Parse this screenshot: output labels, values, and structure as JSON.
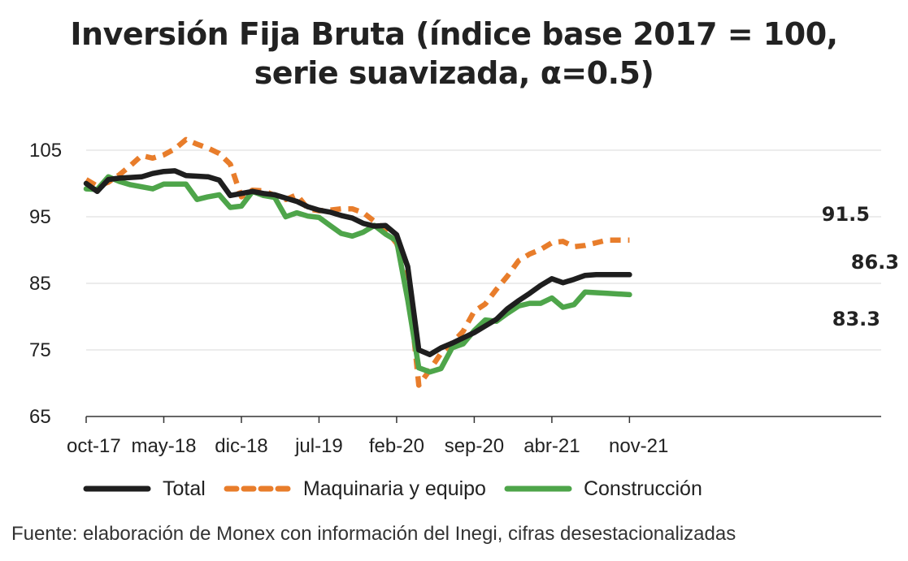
{
  "chart_data": {
    "type": "line",
    "title_line1": "Inversión Fija Bruta (índice base 2017 = 100,",
    "title_line2": "serie suavizada, α=0.5)",
    "source": "Fuente: elaboración de Monex con información del Inegi, cifras desestacionalizadas",
    "x": [
      "oct-17",
      "nov-17",
      "dic-17",
      "ene-18",
      "feb-18",
      "mar-18",
      "abr-18",
      "may-18",
      "jun-18",
      "jul-18",
      "ago-18",
      "sep-18",
      "oct-18",
      "nov-18",
      "dic-18",
      "ene-19",
      "feb-19",
      "mar-19",
      "abr-19",
      "may-19",
      "jun-19",
      "jul-19",
      "ago-19",
      "sep-19",
      "oct-19",
      "nov-19",
      "dic-19",
      "ene-20",
      "feb-20",
      "mar-20",
      "abr-20",
      "may-20",
      "jun-20",
      "jul-20",
      "ago-20",
      "sep-20",
      "oct-20",
      "nov-20",
      "dic-20",
      "ene-21",
      "feb-21",
      "mar-21",
      "abr-21",
      "may-21",
      "jun-21",
      "jul-21",
      "ago-21",
      "sep-21",
      "oct-21",
      "nov-21"
    ],
    "x_tick_labels": [
      "oct-17",
      "may-18",
      "dic-18",
      "jul-19",
      "feb-20",
      "sep-20",
      "abr-21",
      "nov-21"
    ],
    "ylim": [
      65,
      105
    ],
    "y_ticks": [
      65,
      75,
      85,
      95,
      105
    ],
    "grid": "horizontal",
    "legend_position": "bottom",
    "series": [
      {
        "name": "Total",
        "color": "#1e1e1e",
        "style": "solid",
        "end_label": "86.3",
        "values": [
          100.0,
          98.8,
          100.6,
          100.8,
          100.9,
          101.0,
          101.5,
          101.8,
          101.9,
          101.2,
          101.1,
          101.0,
          100.5,
          98.2,
          98.5,
          98.8,
          98.5,
          98.3,
          97.8,
          97.3,
          96.5,
          96.0,
          95.7,
          95.2,
          94.8,
          94.0,
          93.6,
          93.7,
          92.3,
          87.5,
          75.0,
          74.3,
          75.3,
          76.0,
          76.8,
          77.6,
          78.6,
          79.6,
          81.2,
          82.4,
          83.5,
          84.7,
          85.7,
          85.1,
          85.6,
          86.2,
          86.3,
          86.3,
          86.3,
          86.3
        ]
      },
      {
        "name": "Maquinaria y equipo",
        "color": "#e87d2b",
        "style": "dashed",
        "end_label": "91.5",
        "values": [
          100.6,
          99.6,
          100.2,
          101.3,
          102.7,
          104.2,
          103.8,
          104.3,
          105.2,
          106.6,
          105.9,
          105.3,
          104.5,
          102.9,
          98.0,
          99.0,
          98.9,
          98.2,
          97.6,
          98.3,
          96.2,
          95.9,
          96.0,
          96.2,
          96.2,
          95.6,
          94.3,
          93.1,
          91.0,
          86.0,
          69.7,
          72.0,
          74.5,
          76.0,
          77.8,
          80.8,
          81.9,
          84.1,
          86.1,
          88.4,
          89.4,
          90.1,
          91.1,
          91.3,
          90.5,
          90.7,
          91.1,
          91.5,
          91.5,
          91.5
        ]
      },
      {
        "name": "Construcción",
        "color": "#4ea54a",
        "style": "solid",
        "end_label": "83.3",
        "values": [
          99.2,
          99.1,
          101.0,
          100.3,
          99.8,
          99.5,
          99.2,
          99.9,
          99.9,
          99.9,
          97.6,
          98.0,
          98.3,
          96.4,
          96.6,
          98.8,
          98.2,
          97.9,
          95.0,
          95.6,
          95.1,
          94.9,
          93.7,
          92.5,
          92.1,
          92.7,
          93.7,
          92.4,
          91.4,
          82.5,
          72.3,
          71.7,
          72.2,
          75.3,
          75.9,
          77.9,
          79.5,
          79.3,
          80.5,
          81.6,
          82.0,
          82.0,
          82.8,
          81.4,
          81.8,
          83.7,
          83.6,
          83.5,
          83.4,
          83.3
        ]
      }
    ]
  }
}
